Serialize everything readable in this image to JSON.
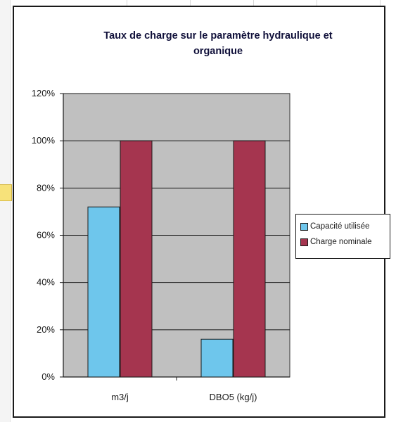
{
  "chart_data": {
    "type": "bar",
    "title": "Taux de charge sur le paramètre hydraulique et organique",
    "categories": [
      "m3/j",
      "DBO5 (kg/j)"
    ],
    "series": [
      {
        "name": "Capacité utilisée",
        "values": [
          72,
          16
        ],
        "color": "#6ec6ec"
      },
      {
        "name": "Charge nominale",
        "values": [
          100,
          100
        ],
        "color": "#a5354f"
      }
    ],
    "ylim": [
      0,
      120
    ],
    "yticks": [
      0,
      20,
      40,
      60,
      80,
      100,
      120
    ],
    "ytick_labels": [
      "0%",
      "20%",
      "40%",
      "60%",
      "80%",
      "100%",
      "120%"
    ],
    "grid": true,
    "plot_background": "#c0c0c0",
    "legend_position": "right"
  }
}
